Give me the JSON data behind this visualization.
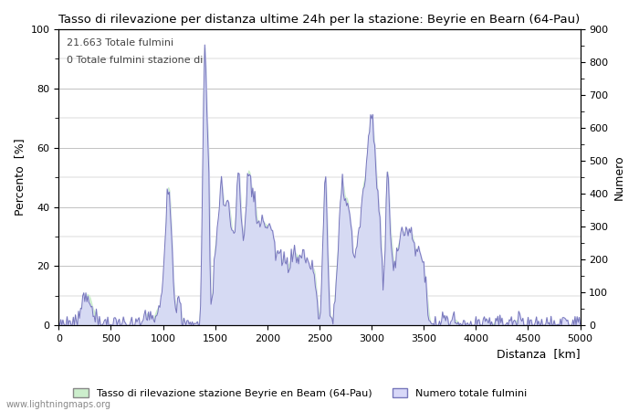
{
  "title": "Tasso di rilevazione per distanza ultime 24h per la stazione: Beyrie en Bearn (64-Pau)",
  "xlabel": "Distanza  [km]",
  "ylabel_left": "Percento  [%]",
  "ylabel_right": "Numero",
  "annotation_line1": "21.663 Totale fulmini",
  "annotation_line2": "0 Totale fulmini stazione di",
  "legend_label1": "Tasso di rilevazione stazione Beyrie en Beam (64-Pau)",
  "legend_label2": "Numero totale fulmini",
  "watermark": "www.lightningmaps.org",
  "xlim": [
    0,
    5000
  ],
  "ylim_left": [
    0,
    100
  ],
  "ylim_right": [
    0,
    900
  ],
  "x_ticks": [
    0,
    500,
    1000,
    1500,
    2000,
    2500,
    3000,
    3500,
    4000,
    4500,
    5000
  ],
  "y_ticks_left": [
    0,
    20,
    40,
    60,
    80,
    100
  ],
  "y_ticks_right": [
    0,
    100,
    200,
    300,
    400,
    500,
    600,
    700,
    800,
    900
  ],
  "fill_color_green": "#cceecc",
  "fill_color_blue": "#d8d8f8",
  "line_color_blue": "#7777bb",
  "background_color": "#ffffff",
  "grid_color": "#aaaaaa"
}
